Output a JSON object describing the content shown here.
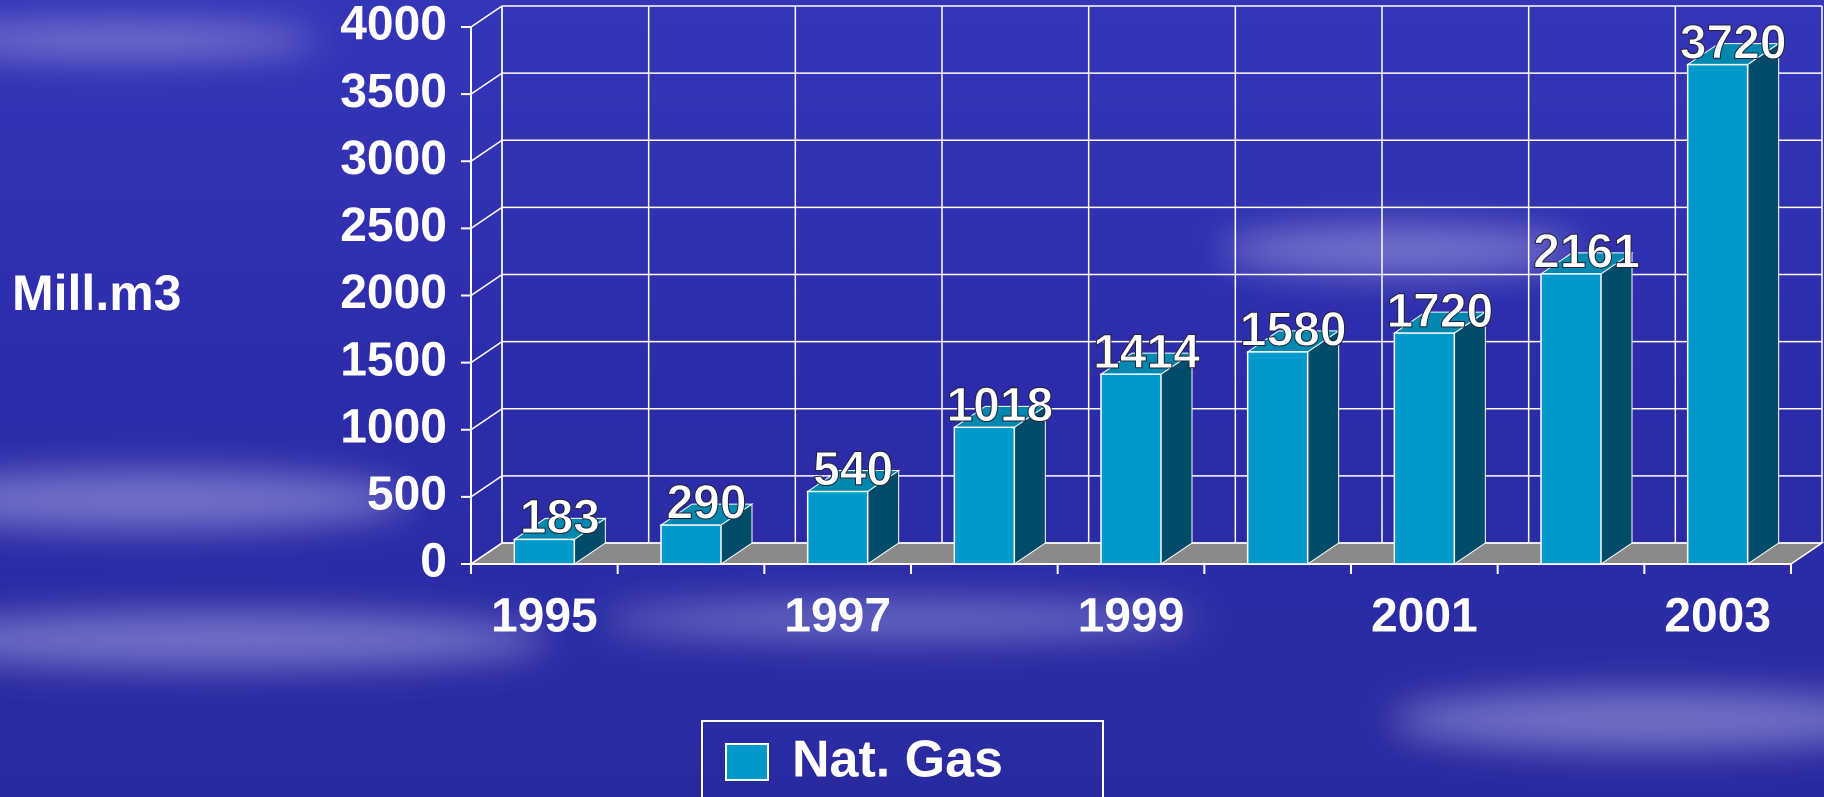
{
  "chart_data": {
    "type": "bar3d",
    "y_label": "Mill.m3",
    "categories": [
      "1995",
      null,
      "1997",
      null,
      "1999",
      null,
      "2001",
      null,
      "2003"
    ],
    "series": [
      {
        "name": "Nat. Gas",
        "color": "#0099cc",
        "values": [
          183,
          290,
          540,
          1018,
          1414,
          1580,
          1720,
          2161,
          3720
        ]
      }
    ],
    "ylim": [
      0,
      4000
    ],
    "yticks": [
      0,
      500,
      1000,
      1500,
      2000,
      2500,
      3000,
      3500,
      4000
    ],
    "grid": true,
    "legend": "bottom"
  }
}
